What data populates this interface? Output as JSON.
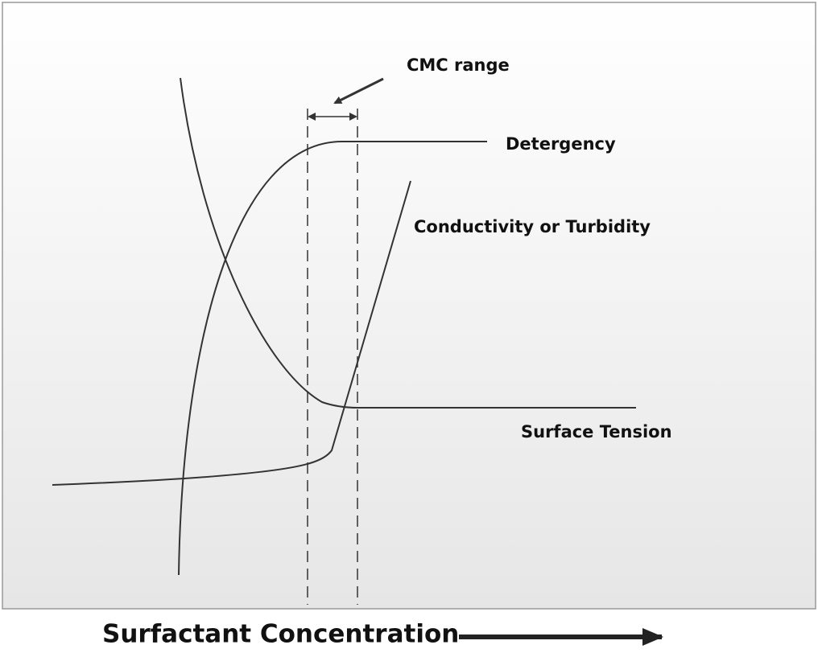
{
  "labels": {
    "cmc_range": "CMC range",
    "detergency": "Detergency",
    "conductivity": "Conductivity or Turbidity",
    "surface_tension": "Surface Tension"
  },
  "x_axis_label": "Surfactant Concentration"
}
